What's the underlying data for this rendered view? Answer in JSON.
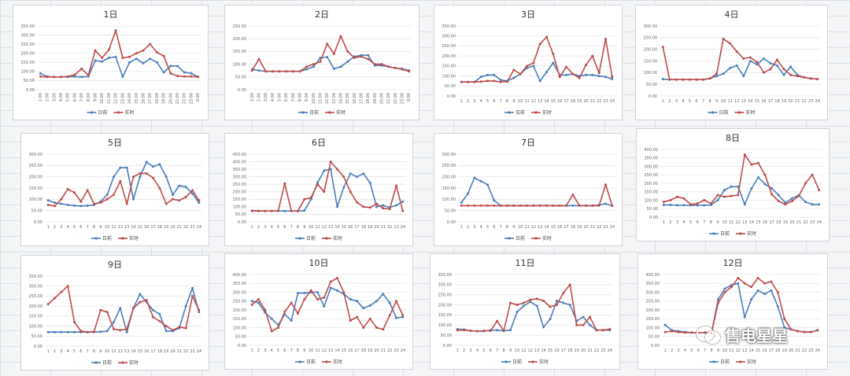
{
  "colors": {
    "actual": "#4a7ebb",
    "forecast": "#be4b48"
  },
  "watermark": {
    "icon": "wechat-icon",
    "text": "售电星星"
  },
  "chart_data": [
    {
      "type": "line",
      "title": "1日",
      "y_ticks": [
        "0.00",
        "50.00",
        "100.00",
        "150.00",
        "200.00",
        "250.00",
        "300.00",
        "350.00"
      ],
      "ylim": [
        0,
        350
      ],
      "categories": [
        "1:00",
        "2:00",
        "3:00",
        "4:00",
        "5:00",
        "6:00",
        "7:00",
        "8:00",
        "9:00",
        "10:00",
        "11:00",
        "12:00",
        "13:00",
        "14:00",
        "15:00",
        "16:00",
        "17:00",
        "18:00",
        "19:00",
        "20:00",
        "21:00",
        "22:00",
        "23:00",
        "0:00"
      ],
      "series": [
        {
          "name": "日前",
          "values": [
            90,
            72,
            70,
            70,
            70,
            72,
            70,
            72,
            160,
            155,
            175,
            180,
            70,
            150,
            170,
            145,
            170,
            150,
            95,
            130,
            130,
            95,
            90,
            70
          ]
        },
        {
          "name": "实时",
          "values": [
            72,
            70,
            70,
            70,
            72,
            82,
            115,
            80,
            215,
            175,
            220,
            325,
            175,
            180,
            200,
            215,
            250,
            205,
            185,
            90,
            75,
            72,
            72,
            70
          ]
        }
      ]
    },
    {
      "type": "line",
      "title": "2日",
      "y_ticks": [
        "0.00",
        "50.00",
        "100.00",
        "150.00",
        "200.00",
        "250.00"
      ],
      "ylim": [
        0,
        250
      ],
      "categories": [
        "1:00",
        "2:00",
        "3:00",
        "4:00",
        "5:00",
        "6:00",
        "7:00",
        "8:00",
        "9:00",
        "10:00",
        "11:00",
        "12:00",
        "13:00",
        "14:00",
        "15:00",
        "16:00",
        "17:00",
        "18:00",
        "19:00",
        "20:00",
        "21:00",
        "22:00",
        "23:00",
        "0:00"
      ],
      "series": [
        {
          "name": "日前",
          "values": [
            80,
            75,
            72,
            72,
            72,
            72,
            72,
            72,
            80,
            90,
            125,
            128,
            82,
            90,
            110,
            130,
            135,
            135,
            95,
            95,
            90,
            85,
            82,
            75
          ]
        },
        {
          "name": "实时",
          "values": [
            75,
            120,
            72,
            72,
            72,
            72,
            72,
            72,
            90,
            100,
            110,
            180,
            140,
            210,
            150,
            125,
            130,
            120,
            100,
            100,
            90,
            85,
            80,
            72
          ]
        }
      ]
    },
    {
      "type": "line",
      "title": "3日",
      "y_ticks": [
        "0.00",
        "50.00",
        "100.00",
        "150.00",
        "200.00",
        "250.00",
        "300.00",
        "350.00"
      ],
      "ylim": [
        0,
        350
      ],
      "categories": [
        "1",
        "2",
        "3",
        "4",
        "5",
        "6",
        "7",
        "8",
        "9",
        "10",
        "11",
        "12",
        "13",
        "14",
        "15",
        "16",
        "17",
        "18",
        "19",
        "20",
        "21",
        "22",
        "23",
        "24"
      ],
      "series": [
        {
          "name": "日前",
          "values": [
            70,
            70,
            70,
            95,
            105,
            105,
            80,
            75,
            90,
            110,
            140,
            150,
            75,
            120,
            165,
            105,
            105,
            110,
            100,
            105,
            105,
            100,
            95,
            85
          ]
        },
        {
          "name": "实时",
          "values": [
            70,
            70,
            70,
            72,
            75,
            75,
            70,
            72,
            130,
            110,
            150,
            165,
            260,
            295,
            210,
            95,
            145,
            110,
            90,
            155,
            200,
            115,
            285,
            95
          ]
        }
      ]
    },
    {
      "type": "line",
      "title": "4日",
      "y_ticks": [
        "0.00",
        "50.00",
        "100.00",
        "150.00",
        "200.00",
        "250.00",
        "300.00"
      ],
      "ylim": [
        0,
        300
      ],
      "categories": [
        "1",
        "2",
        "3",
        "4",
        "5",
        "6",
        "7",
        "8",
        "9",
        "10",
        "11",
        "12",
        "13",
        "14",
        "15",
        "16",
        "17",
        "18",
        "19",
        "20",
        "21",
        "22",
        "23",
        "24"
      ],
      "series": [
        {
          "name": "日前",
          "values": [
            72,
            70,
            70,
            70,
            70,
            70,
            70,
            75,
            85,
            95,
            120,
            130,
            85,
            150,
            135,
            160,
            140,
            130,
            90,
            125,
            90,
            80,
            75,
            72
          ]
        },
        {
          "name": "实时",
          "values": [
            210,
            70,
            70,
            70,
            70,
            70,
            70,
            75,
            95,
            245,
            225,
            190,
            160,
            165,
            145,
            100,
            115,
            155,
            115,
            90,
            85,
            80,
            75,
            72
          ]
        }
      ]
    },
    {
      "type": "line",
      "title": "5日",
      "y_ticks": [
        "0.00",
        "50.00",
        "100.00",
        "150.00",
        "200.00",
        "250.00",
        "300.00"
      ],
      "ylim": [
        0,
        300
      ],
      "categories": [
        "1",
        "2",
        "3",
        "4",
        "5",
        "6",
        "7",
        "8",
        "9",
        "10",
        "11",
        "12",
        "13",
        "14",
        "15",
        "16",
        "17",
        "18",
        "19",
        "20",
        "21",
        "22",
        "23",
        "24"
      ],
      "series": [
        {
          "name": "日前",
          "values": [
            95,
            85,
            80,
            75,
            72,
            70,
            72,
            75,
            90,
            120,
            200,
            240,
            240,
            100,
            200,
            265,
            245,
            255,
            200,
            120,
            160,
            155,
            125,
            85
          ]
        },
        {
          "name": "实时",
          "values": [
            75,
            70,
            100,
            145,
            130,
            90,
            140,
            80,
            85,
            100,
            120,
            180,
            80,
            200,
            215,
            215,
            195,
            150,
            80,
            100,
            95,
            110,
            140,
            95
          ]
        }
      ]
    },
    {
      "type": "line",
      "title": "6日",
      "y_ticks": [
        "0.00",
        "50.00",
        "100.00",
        "150.00",
        "200.00",
        "250.00",
        "300.00",
        "350.00",
        "400.00",
        "450.00"
      ],
      "ylim": [
        0,
        450
      ],
      "categories": [
        "1",
        "2",
        "3",
        "4",
        "5",
        "6",
        "7",
        "8",
        "9",
        "10",
        "11",
        "12",
        "13",
        "14",
        "15",
        "16",
        "17",
        "18",
        "19",
        "20",
        "21",
        "22",
        "23",
        "24"
      ],
      "series": [
        {
          "name": "日前",
          "values": [
            75,
            72,
            72,
            72,
            72,
            72,
            72,
            72,
            75,
            150,
            260,
            340,
            350,
            100,
            230,
            320,
            300,
            320,
            260,
            100,
            110,
            95,
            110,
            135
          ]
        },
        {
          "name": "实时",
          "values": [
            72,
            72,
            72,
            72,
            72,
            255,
            72,
            72,
            150,
            160,
            250,
            200,
            400,
            350,
            300,
            200,
            130,
            100,
            95,
            120,
            90,
            85,
            240,
            72
          ]
        }
      ]
    },
    {
      "type": "line",
      "title": "7日",
      "y_ticks": [
        "0.00",
        "50.00",
        "100.00",
        "150.00",
        "200.00",
        "250.00",
        "300.00"
      ],
      "ylim": [
        0,
        300
      ],
      "categories": [
        "1",
        "2",
        "3",
        "4",
        "5",
        "6",
        "7",
        "8",
        "9",
        "10",
        "11",
        "12",
        "13",
        "14",
        "15",
        "16",
        "17",
        "18",
        "19",
        "20",
        "21",
        "22",
        "23",
        "24"
      ],
      "series": [
        {
          "name": "日前",
          "values": [
            85,
            125,
            195,
            180,
            165,
            95,
            72,
            72,
            72,
            72,
            72,
            72,
            72,
            72,
            72,
            72,
            72,
            72,
            72,
            72,
            72,
            75,
            80,
            72
          ]
        },
        {
          "name": "实时",
          "values": [
            72,
            72,
            72,
            72,
            72,
            72,
            72,
            72,
            72,
            72,
            72,
            72,
            72,
            72,
            72,
            72,
            72,
            120,
            72,
            72,
            72,
            72,
            165,
            72
          ]
        }
      ]
    },
    {
      "type": "line",
      "title": "8日",
      "y_ticks": [
        "0.00",
        "50.00",
        "100.00",
        "150.00",
        "200.00",
        "250.00",
        "300.00",
        "350.00",
        "400.00"
      ],
      "ylim": [
        0,
        400
      ],
      "categories": [
        "1",
        "2",
        "3",
        "4",
        "5",
        "6",
        "7",
        "8",
        "9",
        "10",
        "11",
        "12",
        "13",
        "14",
        "15",
        "16",
        "17",
        "18",
        "19",
        "20",
        "21",
        "22",
        "23",
        "24"
      ],
      "series": [
        {
          "name": "日前",
          "values": [
            72,
            72,
            70,
            70,
            70,
            70,
            70,
            72,
            100,
            160,
            180,
            180,
            75,
            170,
            235,
            195,
            170,
            130,
            85,
            110,
            130,
            90,
            75,
            75
          ]
        },
        {
          "name": "实时",
          "values": [
            90,
            100,
            120,
            110,
            75,
            80,
            100,
            80,
            130,
            120,
            125,
            130,
            370,
            310,
            320,
            250,
            135,
            95,
            75,
            95,
            125,
            200,
            250,
            160
          ]
        }
      ]
    },
    {
      "type": "line",
      "title": "9日",
      "y_ticks": [
        "0.00",
        "50.00",
        "100.00",
        "150.00",
        "200.00",
        "250.00",
        "300.00",
        "350.00"
      ],
      "ylim": [
        0,
        350
      ],
      "categories": [
        "1",
        "2",
        "3",
        "4",
        "5",
        "6",
        "7",
        "8",
        "9",
        "10",
        "11",
        "12",
        "13",
        "14",
        "15",
        "16",
        "17",
        "18",
        "19",
        "20",
        "21",
        "22",
        "23",
        "24"
      ],
      "series": [
        {
          "name": "日前",
          "values": [
            70,
            70,
            70,
            70,
            70,
            70,
            70,
            70,
            72,
            75,
            120,
            190,
            70,
            190,
            260,
            220,
            180,
            160,
            75,
            75,
            90,
            200,
            290,
            170
          ]
        },
        {
          "name": "实时",
          "values": [
            210,
            240,
            270,
            300,
            120,
            75,
            70,
            72,
            180,
            170,
            85,
            80,
            85,
            190,
            220,
            230,
            145,
            125,
            100,
            80,
            95,
            90,
            250,
            180
          ]
        }
      ]
    },
    {
      "type": "line",
      "title": "10日",
      "y_ticks": [
        "0.00",
        "50.00",
        "100.00",
        "150.00",
        "200.00",
        "250.00",
        "300.00",
        "350.00",
        "400.00"
      ],
      "ylim": [
        0,
        400
      ],
      "categories": [
        "1",
        "2",
        "3",
        "4",
        "5",
        "6",
        "7",
        "8",
        "9",
        "10",
        "11",
        "12",
        "13",
        "14",
        "15",
        "16",
        "17",
        "18",
        "19",
        "20",
        "21",
        "22",
        "23",
        "24"
      ],
      "series": [
        {
          "name": "日前",
          "values": [
            250,
            240,
            185,
            150,
            115,
            175,
            140,
            295,
            295,
            300,
            300,
            220,
            325,
            310,
            290,
            260,
            250,
            210,
            225,
            250,
            290,
            240,
            155,
            160
          ]
        },
        {
          "name": "实时",
          "values": [
            230,
            260,
            200,
            80,
            100,
            190,
            240,
            180,
            260,
            310,
            260,
            270,
            360,
            380,
            300,
            140,
            160,
            100,
            150,
            100,
            90,
            170,
            250,
            170
          ]
        }
      ]
    },
    {
      "type": "line",
      "title": "11日",
      "y_ticks": [
        "0.00",
        "50.00",
        "100.00",
        "150.00",
        "200.00",
        "250.00",
        "300.00",
        "350.00"
      ],
      "ylim": [
        0,
        350
      ],
      "categories": [
        "1",
        "2",
        "3",
        "4",
        "5",
        "6",
        "7",
        "8",
        "9",
        "10",
        "11",
        "12",
        "13",
        "14",
        "15",
        "16",
        "17",
        "18",
        "19",
        "20",
        "21",
        "22",
        "23",
        "24"
      ],
      "series": [
        {
          "name": "日前",
          "values": [
            80,
            78,
            72,
            70,
            70,
            75,
            75,
            72,
            75,
            165,
            195,
            215,
            195,
            90,
            130,
            220,
            210,
            200,
            120,
            140,
            100,
            75,
            75,
            75
          ]
        },
        {
          "name": "实时",
          "values": [
            75,
            75,
            72,
            70,
            72,
            72,
            120,
            72,
            210,
            200,
            210,
            225,
            230,
            220,
            190,
            200,
            260,
            300,
            100,
            100,
            140,
            75,
            75,
            80
          ]
        }
      ]
    },
    {
      "type": "line",
      "title": "12日",
      "y_ticks": [
        "0.00",
        "50.00",
        "100.00",
        "150.00",
        "200.00",
        "250.00",
        "300.00",
        "350.00",
        "400.00"
      ],
      "ylim": [
        0,
        400
      ],
      "categories": [
        "1",
        "2",
        "3",
        "4",
        "5",
        "6",
        "7",
        "8",
        "9",
        "10",
        "11",
        "12",
        "13",
        "14",
        "15",
        "16",
        "17",
        "18",
        "19",
        "20",
        "21",
        "22",
        "23",
        "24"
      ],
      "series": [
        {
          "name": "日前",
          "values": [
            115,
            85,
            80,
            75,
            72,
            72,
            72,
            72,
            260,
            320,
            340,
            350,
            160,
            260,
            310,
            290,
            310,
            220,
            100,
            90,
            80,
            75,
            75,
            85
          ]
        },
        {
          "name": "实时",
          "values": [
            75,
            80,
            75,
            72,
            72,
            72,
            72,
            72,
            240,
            300,
            330,
            380,
            350,
            330,
            380,
            350,
            360,
            300,
            150,
            90,
            80,
            75,
            75,
            85
          ]
        }
      ]
    }
  ]
}
